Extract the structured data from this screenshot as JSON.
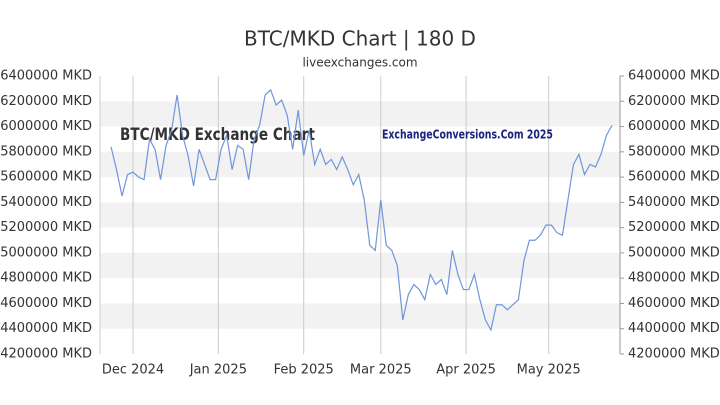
{
  "chart_data": {
    "type": "line",
    "title": "BTC/MKD Chart | 180 D",
    "subtitle": "liveexchanges.com",
    "annotations": [
      "BTC/MKD Exchange Chart",
      "ExchangeConversions.Com 2025"
    ],
    "series": [
      {
        "name": "BTC/MKD",
        "color": "#6f95dc",
        "values": [
          5840000,
          5660000,
          5450000,
          5620000,
          5640000,
          5600000,
          5580000,
          5900000,
          5820000,
          5580000,
          5850000,
          5970000,
          6250000,
          5930000,
          5770000,
          5530000,
          5820000,
          5700000,
          5580000,
          5580000,
          5820000,
          5930000,
          5660000,
          5850000,
          5820000,
          5580000,
          5900000,
          6010000,
          6250000,
          6290000,
          6170000,
          6210000,
          6090000,
          5820000,
          6130000,
          5770000,
          5970000,
          5700000,
          5820000,
          5700000,
          5740000,
          5660000,
          5760000,
          5660000,
          5540000,
          5620000,
          5420000,
          5060000,
          5020000,
          5420000,
          5060000,
          5020000,
          4900000,
          4470000,
          4670000,
          4750000,
          4710000,
          4630000,
          4830000,
          4750000,
          4790000,
          4670000,
          5020000,
          4830000,
          4710000,
          4710000,
          4830000,
          4630000,
          4470000,
          4390000,
          4590000,
          4590000,
          4550000,
          4590000,
          4630000,
          4940000,
          5100000,
          5100000,
          5140000,
          5220000,
          5220000,
          5160000,
          5140000,
          5420000,
          5700000,
          5780000,
          5620000,
          5700000,
          5680000,
          5780000,
          5930000,
          6010000
        ]
      }
    ],
    "xlim": [
      0,
      91
    ],
    "xticks": [
      {
        "value": 4,
        "label": "Dec 2024"
      },
      {
        "value": 19.5,
        "label": "Jan 2025"
      },
      {
        "value": 35,
        "label": "Feb 2025"
      },
      {
        "value": 49,
        "label": "Mar 2025"
      },
      {
        "value": 64.5,
        "label": "Apr 2025"
      },
      {
        "value": 79.5,
        "label": "May 2025"
      }
    ],
    "ylim": [
      4200000,
      6400000
    ],
    "yticks": [
      {
        "value": 4200000,
        "label": "4200000 MKD"
      },
      {
        "value": 4400000,
        "label": "4400000 MKD"
      },
      {
        "value": 4600000,
        "label": "4600000 MKD"
      },
      {
        "value": 4800000,
        "label": "4800000 MKD"
      },
      {
        "value": 5000000,
        "label": "5000000 MKD"
      },
      {
        "value": 5200000,
        "label": "5200000 MKD"
      },
      {
        "value": 5400000,
        "label": "5400000 MKD"
      },
      {
        "value": 5600000,
        "label": "5600000 MKD"
      },
      {
        "value": 5800000,
        "label": "5800000 MKD"
      },
      {
        "value": 6000000,
        "label": "6000000 MKD"
      },
      {
        "value": 6200000,
        "label": "6200000 MKD"
      },
      {
        "value": 6400000,
        "label": "6400000 MKD"
      }
    ],
    "grid": true
  }
}
